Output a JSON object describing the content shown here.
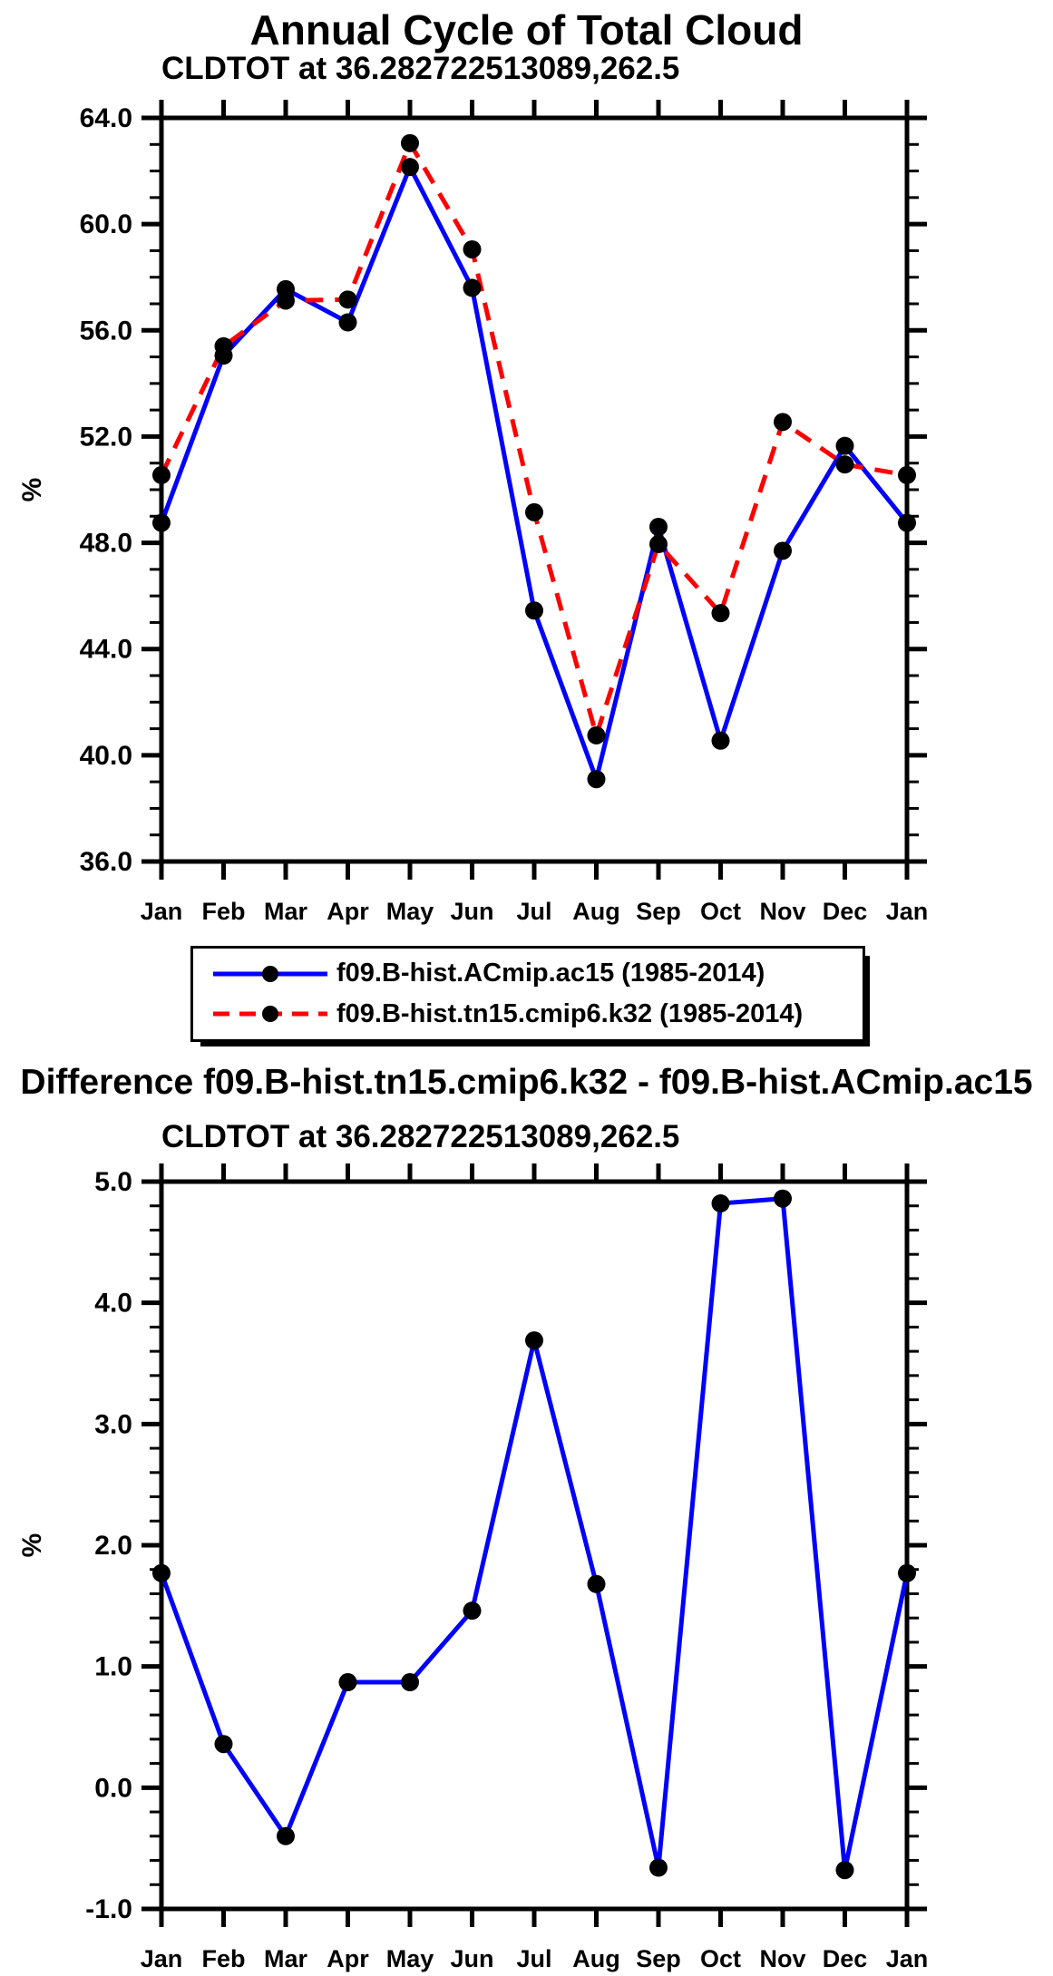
{
  "page": {
    "background": "#ffffff"
  },
  "header": {
    "title": "Annual Cycle of Total Cloud"
  },
  "top_chart": {
    "subtitle": "CLDTOT at 36.282722513089,262.5",
    "ylabel": "%"
  },
  "legend": {
    "entries": [
      {
        "label": "f09.B-hist.ACmip.ac15 (1985-2014)",
        "color": "#0000ff",
        "line_style": "solid",
        "marker_color": "#000000"
      },
      {
        "label": "f09.B-hist.tn15.cmip6.k32 (1985-2014)",
        "color": "#ff0000",
        "line_style": "dashed",
        "marker_color": "#000000"
      }
    ]
  },
  "diff_chart": {
    "title": "Difference f09.B-hist.tn15.cmip6.k32 - f09.B-hist.ACmip.ac15",
    "subtitle": "CLDTOT at 36.282722513089,262.5",
    "ylabel": "%"
  },
  "chart_data": [
    {
      "type": "line",
      "title": "Annual Cycle of Total Cloud",
      "subtitle": "CLDTOT at 36.282722513089,262.5",
      "xlabel": "",
      "ylabel": "%",
      "categories": [
        "Jan",
        "Feb",
        "Mar",
        "Apr",
        "May",
        "Jun",
        "Jul",
        "Aug",
        "Sep",
        "Oct",
        "Nov",
        "Dec",
        "Jan"
      ],
      "ylim": [
        36.0,
        64.0
      ],
      "ytick_major": 4.0,
      "ytick_minor": 1.0,
      "ytick_labels": [
        "36.0",
        "40.0",
        "44.0",
        "48.0",
        "52.0",
        "56.0",
        "60.0",
        "64.0"
      ],
      "grid": false,
      "legend_position": "below",
      "marker": {
        "shape": "circle",
        "color": "#000000"
      },
      "series": [
        {
          "name": "f09.B-hist.ACmip.ac15 (1985-2014)",
          "color": "#0000ff",
          "line_style": "solid",
          "values": [
            48.75,
            55.05,
            57.55,
            56.3,
            62.15,
            57.6,
            45.45,
            39.1,
            48.6,
            40.55,
            47.7,
            51.65,
            48.75
          ]
        },
        {
          "name": "f09.B-hist.tn15.cmip6.k32 (1985-2014)",
          "color": "#ff0000",
          "line_style": "dashed",
          "values": [
            50.55,
            55.4,
            57.12,
            57.16,
            63.05,
            59.05,
            49.15,
            40.75,
            47.95,
            45.35,
            52.55,
            50.95,
            50.55
          ]
        }
      ]
    },
    {
      "type": "line",
      "title": "Difference f09.B-hist.tn15.cmip6.k32 - f09.B-hist.ACmip.ac15",
      "subtitle": "CLDTOT at 36.282722513089,262.5",
      "xlabel": "",
      "ylabel": "%",
      "categories": [
        "Jan",
        "Feb",
        "Mar",
        "Apr",
        "May",
        "Jun",
        "Jul",
        "Aug",
        "Sep",
        "Oct",
        "Nov",
        "Dec",
        "Jan"
      ],
      "ylim": [
        -1.0,
        5.0
      ],
      "ytick_major": 1.0,
      "ytick_minor": 0.2,
      "ytick_labels": [
        "-1.0",
        "0.0",
        "1.0",
        "2.0",
        "3.0",
        "4.0",
        "5.0"
      ],
      "grid": false,
      "marker": {
        "shape": "circle",
        "color": "#000000"
      },
      "series": [
        {
          "name": "difference",
          "color": "#0000ff",
          "line_style": "solid",
          "values": [
            1.77,
            0.36,
            -0.4,
            0.87,
            0.87,
            1.46,
            3.69,
            1.68,
            -0.66,
            4.82,
            4.86,
            -0.68,
            1.77
          ]
        }
      ]
    }
  ]
}
